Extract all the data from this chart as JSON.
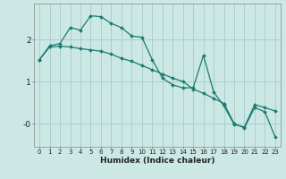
{
  "xlabel": "Humidex (Indice chaleur)",
  "background_color": "#cce8e5",
  "grid_color": "#aacfcc",
  "line_color": "#1a7a70",
  "x_line1": [
    0,
    1,
    2,
    3,
    4,
    5,
    6,
    7,
    8,
    9,
    10,
    11,
    12,
    13,
    14,
    15,
    16,
    17,
    18,
    19,
    20,
    21,
    22,
    23
  ],
  "y_line1": [
    1.52,
    1.85,
    1.9,
    2.28,
    2.22,
    2.56,
    2.54,
    2.38,
    2.28,
    2.08,
    2.05,
    1.52,
    1.08,
    0.92,
    0.85,
    0.85,
    1.62,
    0.75,
    0.42,
    -0.02,
    -0.08,
    0.45,
    0.38,
    0.3
  ],
  "x_line2": [
    0,
    1,
    2,
    3,
    4,
    5,
    6,
    7,
    8,
    9,
    10,
    11,
    12,
    13,
    14,
    15,
    16,
    17,
    18,
    19,
    20,
    21,
    22,
    23
  ],
  "y_line2": [
    1.52,
    1.82,
    1.84,
    1.82,
    1.78,
    1.75,
    1.72,
    1.65,
    1.55,
    1.48,
    1.38,
    1.28,
    1.18,
    1.08,
    1.0,
    0.82,
    0.72,
    0.6,
    0.48,
    0.0,
    -0.1,
    0.38,
    0.28,
    -0.32
  ],
  "ylim": [
    -0.55,
    2.85
  ],
  "xlim": [
    -0.5,
    23.5
  ],
  "ytick_positions": [
    0,
    1,
    2
  ],
  "ytick_labels": [
    "-0",
    "1",
    "2"
  ],
  "xtick_fontsize": 5.0,
  "ytick_fontsize": 6.5
}
